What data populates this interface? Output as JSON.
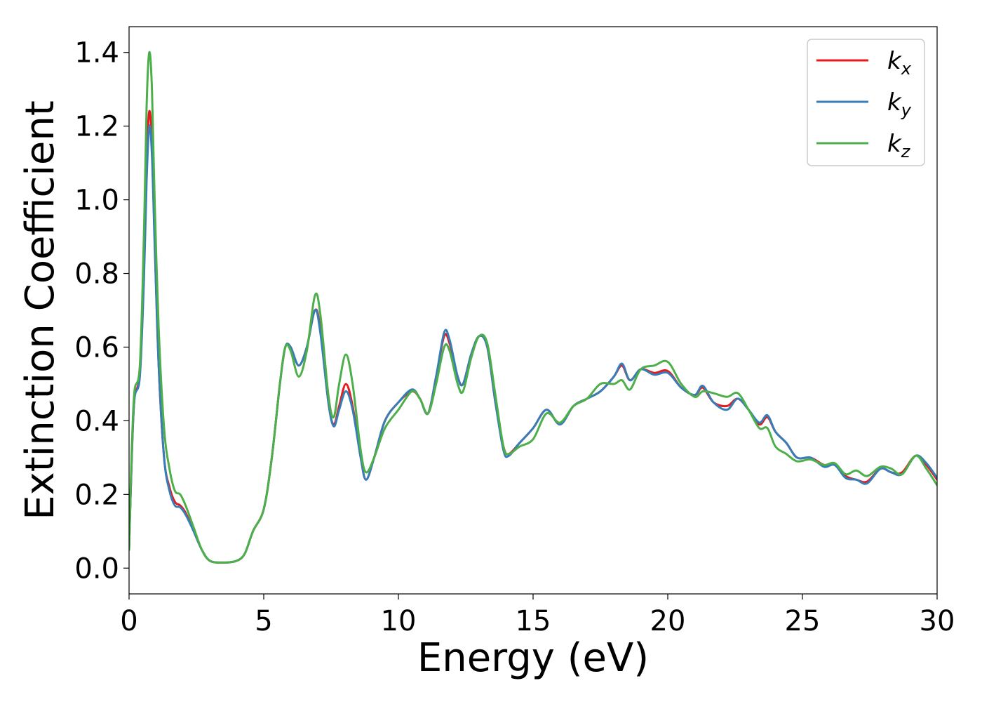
{
  "chart_data": {
    "type": "line",
    "title": "",
    "xlabel": "Energy (eV)",
    "ylabel": "Extinction Coefficient",
    "xlim": [
      0,
      30
    ],
    "ylim": [
      -0.07,
      1.47
    ],
    "xticks": [
      0,
      5,
      10,
      15,
      20,
      25,
      30
    ],
    "yticks": [
      0.0,
      0.2,
      0.4,
      0.6,
      0.8,
      1.0,
      1.2,
      1.4
    ],
    "grid": false,
    "legend_position": "top-right",
    "series": [
      {
        "name": "k_x",
        "label_base": "k",
        "label_sub": "x",
        "color": "#e41a1c",
        "points": [
          [
            0,
            0.05
          ],
          [
            0.1,
            0.3
          ],
          [
            0.2,
            0.46
          ],
          [
            0.4,
            0.53
          ],
          [
            0.55,
            0.8
          ],
          [
            0.65,
            1.1
          ],
          [
            0.75,
            1.24
          ],
          [
            0.85,
            1.15
          ],
          [
            0.95,
            0.9
          ],
          [
            1.1,
            0.55
          ],
          [
            1.3,
            0.3
          ],
          [
            1.5,
            0.22
          ],
          [
            1.7,
            0.18
          ],
          [
            1.9,
            0.17
          ],
          [
            2.1,
            0.15
          ],
          [
            2.4,
            0.1
          ],
          [
            2.7,
            0.05
          ],
          [
            3.0,
            0.02
          ],
          [
            3.5,
            0.015
          ],
          [
            4.0,
            0.02
          ],
          [
            4.3,
            0.04
          ],
          [
            4.6,
            0.1
          ],
          [
            5.0,
            0.16
          ],
          [
            5.3,
            0.3
          ],
          [
            5.6,
            0.5
          ],
          [
            5.8,
            0.6
          ],
          [
            6.0,
            0.6
          ],
          [
            6.3,
            0.55
          ],
          [
            6.6,
            0.6
          ],
          [
            6.9,
            0.7
          ],
          [
            7.1,
            0.65
          ],
          [
            7.4,
            0.45
          ],
          [
            7.6,
            0.39
          ],
          [
            7.8,
            0.44
          ],
          [
            8.05,
            0.5
          ],
          [
            8.3,
            0.44
          ],
          [
            8.6,
            0.3
          ],
          [
            8.8,
            0.24
          ],
          [
            9.1,
            0.3
          ],
          [
            9.5,
            0.4
          ],
          [
            10.0,
            0.45
          ],
          [
            10.5,
            0.48
          ],
          [
            10.8,
            0.46
          ],
          [
            11.1,
            0.42
          ],
          [
            11.4,
            0.52
          ],
          [
            11.7,
            0.63
          ],
          [
            11.9,
            0.61
          ],
          [
            12.2,
            0.52
          ],
          [
            12.4,
            0.5
          ],
          [
            12.7,
            0.58
          ],
          [
            13.0,
            0.63
          ],
          [
            13.3,
            0.6
          ],
          [
            13.6,
            0.45
          ],
          [
            13.9,
            0.33
          ],
          [
            14.1,
            0.31
          ],
          [
            14.5,
            0.34
          ],
          [
            15.0,
            0.38
          ],
          [
            15.5,
            0.43
          ],
          [
            16.0,
            0.39
          ],
          [
            16.5,
            0.44
          ],
          [
            17.0,
            0.46
          ],
          [
            17.5,
            0.48
          ],
          [
            18.0,
            0.52
          ],
          [
            18.3,
            0.55
          ],
          [
            18.6,
            0.51
          ],
          [
            19.0,
            0.54
          ],
          [
            19.5,
            0.53
          ],
          [
            20.0,
            0.535
          ],
          [
            20.5,
            0.49
          ],
          [
            21.0,
            0.47
          ],
          [
            21.3,
            0.49
          ],
          [
            21.7,
            0.45
          ],
          [
            22.2,
            0.44
          ],
          [
            22.6,
            0.46
          ],
          [
            23.0,
            0.43
          ],
          [
            23.4,
            0.39
          ],
          [
            23.7,
            0.41
          ],
          [
            24.0,
            0.37
          ],
          [
            24.4,
            0.34
          ],
          [
            24.8,
            0.3
          ],
          [
            25.3,
            0.3
          ],
          [
            25.8,
            0.28
          ],
          [
            26.2,
            0.28
          ],
          [
            26.6,
            0.25
          ],
          [
            27.0,
            0.24
          ],
          [
            27.4,
            0.235
          ],
          [
            27.9,
            0.27
          ],
          [
            28.3,
            0.26
          ],
          [
            28.7,
            0.26
          ],
          [
            29.2,
            0.305
          ],
          [
            29.6,
            0.28
          ],
          [
            30,
            0.24
          ]
        ]
      },
      {
        "name": "k_y",
        "label_base": "k",
        "label_sub": "y",
        "color": "#377eb8",
        "points": [
          [
            0,
            0.05
          ],
          [
            0.1,
            0.3
          ],
          [
            0.2,
            0.46
          ],
          [
            0.4,
            0.52
          ],
          [
            0.55,
            0.78
          ],
          [
            0.65,
            1.05
          ],
          [
            0.75,
            1.2
          ],
          [
            0.85,
            1.12
          ],
          [
            0.95,
            0.88
          ],
          [
            1.1,
            0.55
          ],
          [
            1.3,
            0.3
          ],
          [
            1.5,
            0.21
          ],
          [
            1.7,
            0.17
          ],
          [
            1.9,
            0.165
          ],
          [
            2.1,
            0.145
          ],
          [
            2.4,
            0.1
          ],
          [
            2.7,
            0.05
          ],
          [
            3.0,
            0.02
          ],
          [
            3.5,
            0.015
          ],
          [
            4.0,
            0.02
          ],
          [
            4.3,
            0.04
          ],
          [
            4.6,
            0.1
          ],
          [
            5.0,
            0.16
          ],
          [
            5.3,
            0.3
          ],
          [
            5.6,
            0.5
          ],
          [
            5.8,
            0.6
          ],
          [
            6.0,
            0.6
          ],
          [
            6.3,
            0.55
          ],
          [
            6.6,
            0.6
          ],
          [
            6.9,
            0.7
          ],
          [
            7.1,
            0.64
          ],
          [
            7.4,
            0.45
          ],
          [
            7.6,
            0.385
          ],
          [
            7.8,
            0.43
          ],
          [
            8.05,
            0.48
          ],
          [
            8.3,
            0.43
          ],
          [
            8.6,
            0.3
          ],
          [
            8.8,
            0.24
          ],
          [
            9.1,
            0.3
          ],
          [
            9.5,
            0.4
          ],
          [
            10.0,
            0.45
          ],
          [
            10.5,
            0.485
          ],
          [
            10.8,
            0.46
          ],
          [
            11.1,
            0.42
          ],
          [
            11.4,
            0.52
          ],
          [
            11.7,
            0.64
          ],
          [
            11.9,
            0.62
          ],
          [
            12.2,
            0.52
          ],
          [
            12.4,
            0.5
          ],
          [
            12.7,
            0.58
          ],
          [
            13.0,
            0.63
          ],
          [
            13.3,
            0.6
          ],
          [
            13.6,
            0.45
          ],
          [
            13.9,
            0.32
          ],
          [
            14.1,
            0.305
          ],
          [
            14.5,
            0.34
          ],
          [
            15.0,
            0.38
          ],
          [
            15.5,
            0.43
          ],
          [
            16.0,
            0.39
          ],
          [
            16.5,
            0.44
          ],
          [
            17.0,
            0.46
          ],
          [
            17.5,
            0.48
          ],
          [
            18.0,
            0.52
          ],
          [
            18.3,
            0.555
          ],
          [
            18.6,
            0.51
          ],
          [
            19.0,
            0.54
          ],
          [
            19.5,
            0.525
          ],
          [
            20.0,
            0.53
          ],
          [
            20.5,
            0.49
          ],
          [
            21.0,
            0.47
          ],
          [
            21.3,
            0.495
          ],
          [
            21.7,
            0.45
          ],
          [
            22.2,
            0.43
          ],
          [
            22.6,
            0.46
          ],
          [
            23.0,
            0.43
          ],
          [
            23.4,
            0.395
          ],
          [
            23.7,
            0.415
          ],
          [
            24.0,
            0.37
          ],
          [
            24.4,
            0.34
          ],
          [
            24.8,
            0.3
          ],
          [
            25.3,
            0.3
          ],
          [
            25.8,
            0.275
          ],
          [
            26.2,
            0.28
          ],
          [
            26.6,
            0.245
          ],
          [
            27.0,
            0.24
          ],
          [
            27.4,
            0.23
          ],
          [
            27.9,
            0.27
          ],
          [
            28.3,
            0.26
          ],
          [
            28.7,
            0.255
          ],
          [
            29.2,
            0.305
          ],
          [
            29.6,
            0.285
          ],
          [
            30,
            0.245
          ]
        ]
      },
      {
        "name": "k_z",
        "label_base": "k",
        "label_sub": "z",
        "color": "#4daf4a",
        "points": [
          [
            0,
            0.05
          ],
          [
            0.1,
            0.32
          ],
          [
            0.2,
            0.48
          ],
          [
            0.4,
            0.55
          ],
          [
            0.55,
            0.9
          ],
          [
            0.65,
            1.25
          ],
          [
            0.75,
            1.4
          ],
          [
            0.85,
            1.3
          ],
          [
            0.95,
            1.0
          ],
          [
            1.1,
            0.65
          ],
          [
            1.3,
            0.38
          ],
          [
            1.5,
            0.27
          ],
          [
            1.7,
            0.21
          ],
          [
            1.9,
            0.2
          ],
          [
            2.1,
            0.17
          ],
          [
            2.4,
            0.11
          ],
          [
            2.7,
            0.05
          ],
          [
            3.0,
            0.02
          ],
          [
            3.5,
            0.015
          ],
          [
            4.0,
            0.02
          ],
          [
            4.3,
            0.04
          ],
          [
            4.6,
            0.1
          ],
          [
            5.0,
            0.16
          ],
          [
            5.3,
            0.3
          ],
          [
            5.6,
            0.5
          ],
          [
            5.8,
            0.6
          ],
          [
            6.0,
            0.59
          ],
          [
            6.3,
            0.52
          ],
          [
            6.6,
            0.59
          ],
          [
            6.9,
            0.74
          ],
          [
            7.1,
            0.69
          ],
          [
            7.4,
            0.47
          ],
          [
            7.6,
            0.41
          ],
          [
            7.8,
            0.5
          ],
          [
            8.05,
            0.58
          ],
          [
            8.3,
            0.5
          ],
          [
            8.6,
            0.32
          ],
          [
            8.8,
            0.26
          ],
          [
            9.1,
            0.3
          ],
          [
            9.5,
            0.38
          ],
          [
            10.0,
            0.43
          ],
          [
            10.5,
            0.48
          ],
          [
            10.8,
            0.46
          ],
          [
            11.1,
            0.42
          ],
          [
            11.4,
            0.5
          ],
          [
            11.7,
            0.6
          ],
          [
            11.9,
            0.59
          ],
          [
            12.2,
            0.5
          ],
          [
            12.4,
            0.48
          ],
          [
            12.7,
            0.57
          ],
          [
            13.0,
            0.63
          ],
          [
            13.3,
            0.61
          ],
          [
            13.6,
            0.47
          ],
          [
            13.9,
            0.33
          ],
          [
            14.1,
            0.31
          ],
          [
            14.5,
            0.33
          ],
          [
            15.0,
            0.35
          ],
          [
            15.5,
            0.42
          ],
          [
            16.0,
            0.395
          ],
          [
            16.5,
            0.44
          ],
          [
            17.0,
            0.46
          ],
          [
            17.5,
            0.5
          ],
          [
            18.0,
            0.5
          ],
          [
            18.3,
            0.51
          ],
          [
            18.6,
            0.485
          ],
          [
            19.0,
            0.54
          ],
          [
            19.5,
            0.55
          ],
          [
            20.0,
            0.56
          ],
          [
            20.5,
            0.5
          ],
          [
            21.0,
            0.465
          ],
          [
            21.3,
            0.48
          ],
          [
            21.7,
            0.475
          ],
          [
            22.2,
            0.465
          ],
          [
            22.6,
            0.475
          ],
          [
            23.0,
            0.43
          ],
          [
            23.4,
            0.38
          ],
          [
            23.7,
            0.38
          ],
          [
            24.0,
            0.33
          ],
          [
            24.4,
            0.31
          ],
          [
            24.8,
            0.29
          ],
          [
            25.3,
            0.295
          ],
          [
            25.8,
            0.28
          ],
          [
            26.2,
            0.285
          ],
          [
            26.6,
            0.255
          ],
          [
            27.0,
            0.265
          ],
          [
            27.4,
            0.25
          ],
          [
            27.9,
            0.275
          ],
          [
            28.3,
            0.27
          ],
          [
            28.7,
            0.255
          ],
          [
            29.2,
            0.305
          ],
          [
            29.6,
            0.27
          ],
          [
            30,
            0.225
          ]
        ]
      }
    ]
  }
}
